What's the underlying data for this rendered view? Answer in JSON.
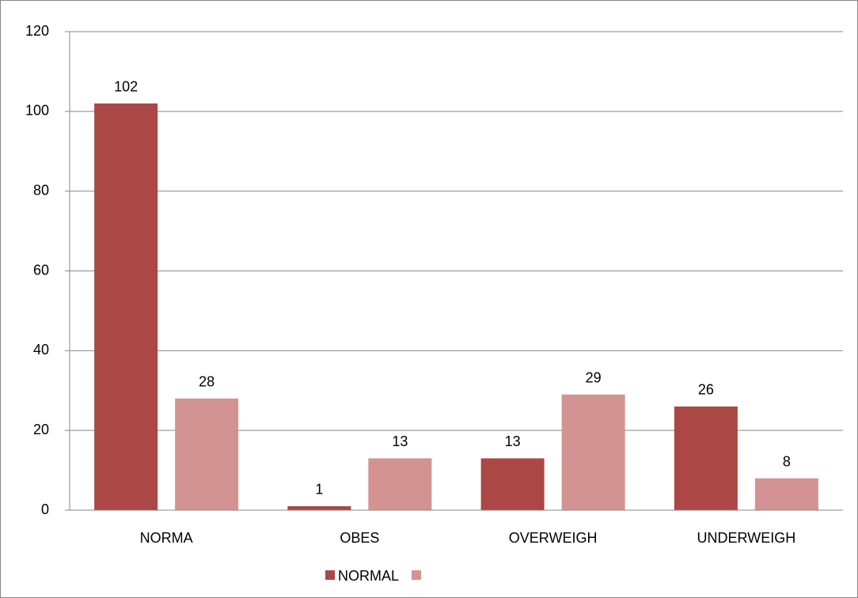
{
  "chart_data": {
    "type": "bar",
    "categories": [
      "NORMA",
      "OBES",
      "OVERWEIGH",
      "UNDERWEIGH"
    ],
    "series": [
      {
        "name": "NORMAL",
        "color": "#ab4744",
        "values": [
          102,
          1,
          13,
          26
        ]
      },
      {
        "color": "#d39392",
        "values": [
          28,
          13,
          29,
          8
        ]
      }
    ],
    "ylim": [
      0,
      120
    ],
    "yticks": [
      0,
      20,
      40,
      60,
      80,
      100,
      120
    ],
    "grid": true,
    "legend": "bottom"
  }
}
